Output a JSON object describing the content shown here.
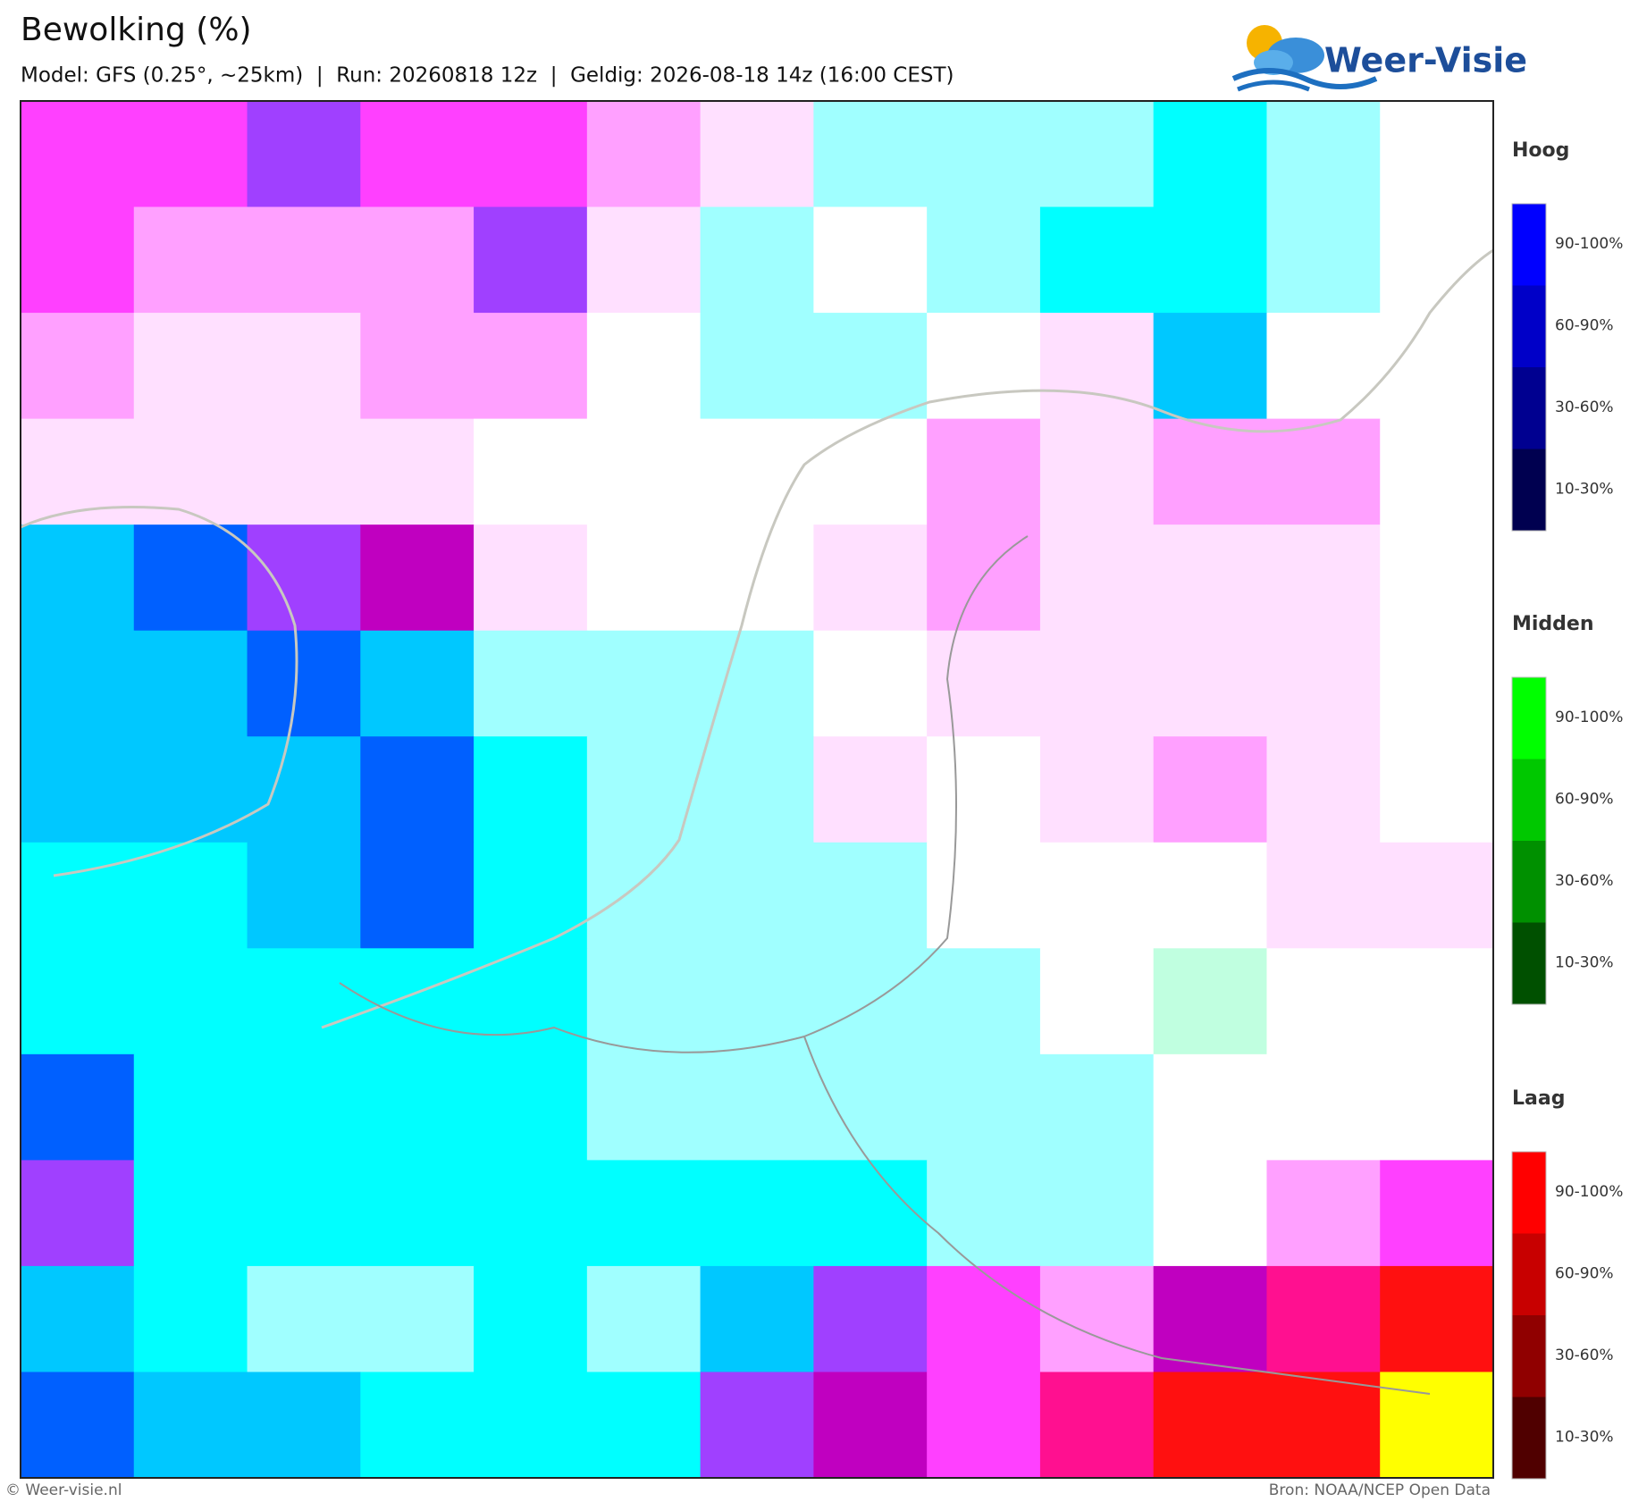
{
  "header": {
    "title": "Bewolking (%)",
    "subtitle": "Model: GFS (0.25°, ~25km)  |  Run: 20260818 12z  |  Geldig: 2026-08-18 14z (16:00 CEST)"
  },
  "logo": {
    "text": "Weer-Visie"
  },
  "legend": [
    {
      "title": "Hoog",
      "labels": [
        "90-100%",
        "60-90%",
        "30-60%",
        "10-30%"
      ]
    },
    {
      "title": "Midden",
      "labels": [
        "90-100%",
        "60-90%",
        "30-60%",
        "10-30%"
      ]
    },
    {
      "title": "Laag",
      "labels": [
        "90-100%",
        "60-90%",
        "30-60%",
        "10-30%"
      ]
    }
  ],
  "footer": {
    "left": "© Weer-visie.nl",
    "right": "Bron: NOAA/NCEP Open Data"
  }
}
